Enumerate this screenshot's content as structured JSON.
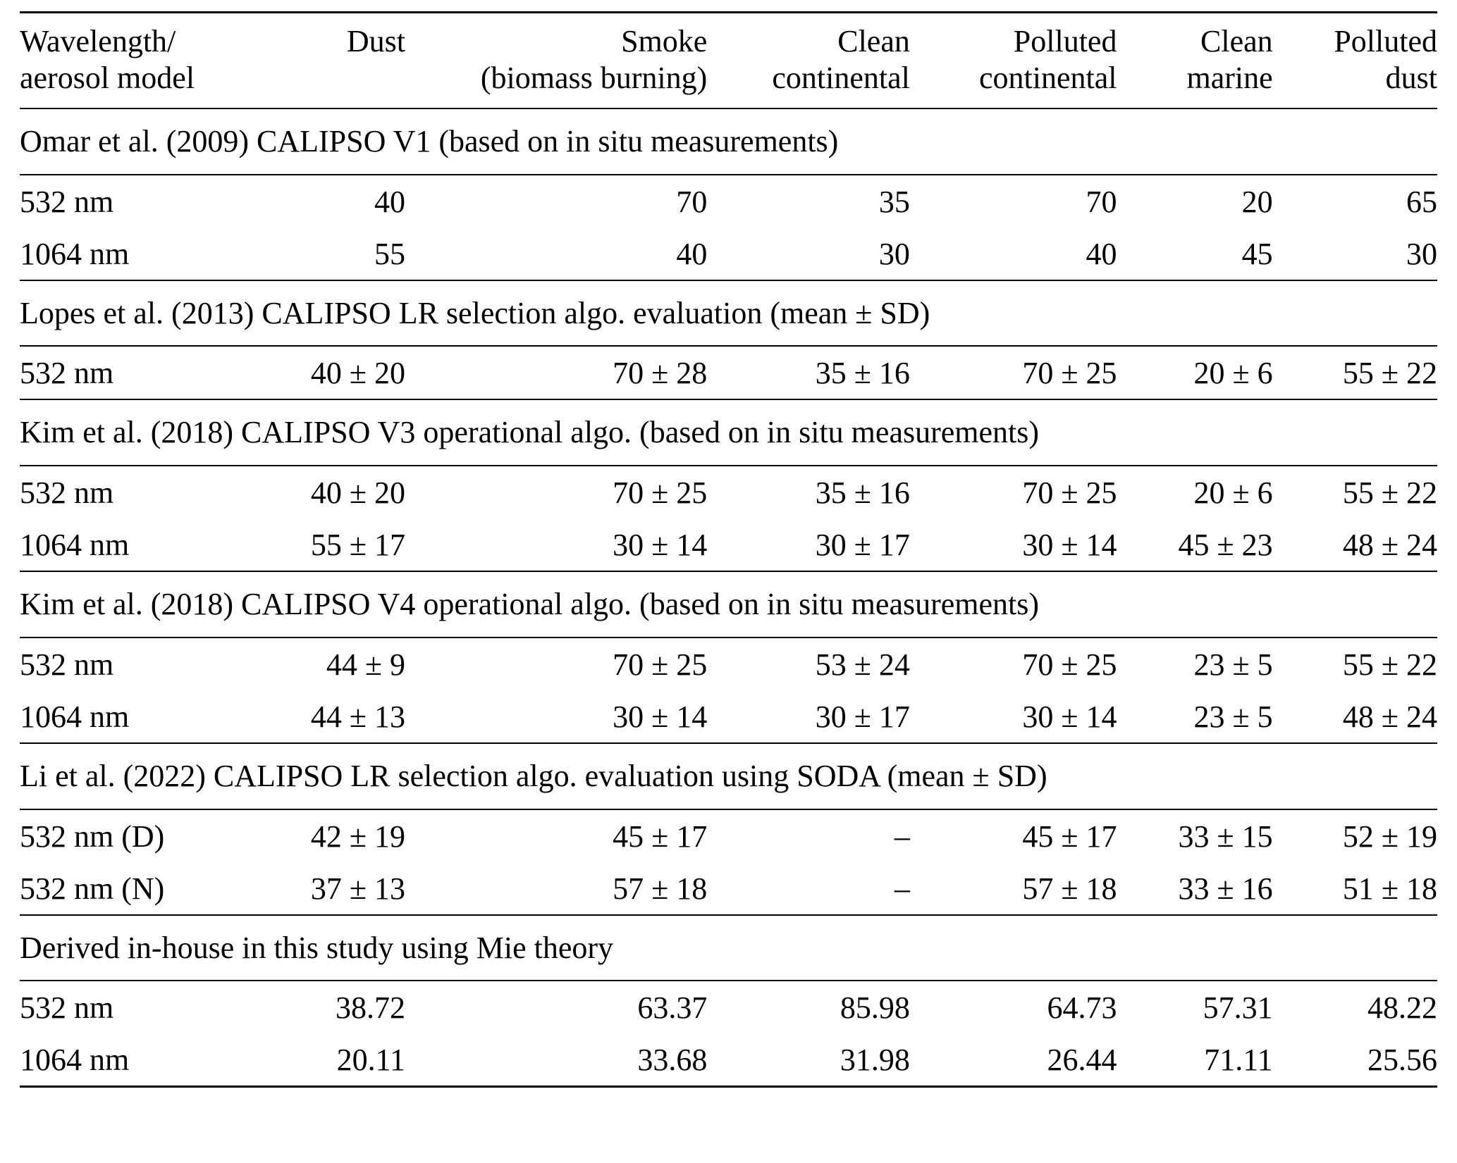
{
  "page": {
    "background": "#ffffff",
    "text_color": "#000000",
    "rule_color": "#000000"
  },
  "table": {
    "header": {
      "col0": "Wavelength/\naerosol model",
      "cols": [
        "Dust",
        "Smoke\n(biomass burning)",
        "Clean\ncontinental",
        "Polluted\ncontinental",
        "Clean\nmarine",
        "Polluted\ndust"
      ]
    },
    "sections": [
      {
        "title": "Omar et al. (2009) CALIPSO V1 (based on in situ measurements)",
        "rows": [
          {
            "label": "532 nm",
            "values": [
              "40",
              "70",
              "35",
              "70",
              "20",
              "65"
            ]
          },
          {
            "label": "1064 nm",
            "values": [
              "55",
              "40",
              "30",
              "40",
              "45",
              "30"
            ]
          }
        ]
      },
      {
        "title": "Lopes et al. (2013) CALIPSO LR selection algo. evaluation (mean ± SD)",
        "rows": [
          {
            "label": "532 nm",
            "values": [
              "40 ± 20",
              "70 ± 28",
              "35 ± 16",
              "70 ± 25",
              "20 ± 6",
              "55 ± 22"
            ]
          }
        ]
      },
      {
        "title": "Kim et al. (2018) CALIPSO V3 operational algo. (based on in situ measurements)",
        "rows": [
          {
            "label": "532 nm",
            "values": [
              "40 ± 20",
              "70 ± 25",
              "35 ± 16",
              "70 ± 25",
              "20 ± 6",
              "55 ± 22"
            ]
          },
          {
            "label": "1064 nm",
            "values": [
              "55 ± 17",
              "30 ± 14",
              "30 ± 17",
              "30 ± 14",
              "45 ± 23",
              "48 ± 24"
            ]
          }
        ]
      },
      {
        "title": "Kim et al. (2018) CALIPSO V4 operational algo. (based on in situ measurements)",
        "rows": [
          {
            "label": "532 nm",
            "values": [
              "44 ± 9",
              "70 ± 25",
              "53 ± 24",
              "70 ± 25",
              "23 ± 5",
              "55 ± 22"
            ]
          },
          {
            "label": "1064 nm",
            "values": [
              "44 ± 13",
              "30 ± 14",
              "30 ± 17",
              "30 ± 14",
              "23 ± 5",
              "48 ± 24"
            ]
          }
        ]
      },
      {
        "title": "Li et al. (2022) CALIPSO LR selection algo. evaluation using SODA (mean ± SD)",
        "rows": [
          {
            "label": "532 nm (D)",
            "values": [
              "42 ± 19",
              "45 ± 17",
              "–",
              "45 ± 17",
              "33 ± 15",
              "52 ± 19"
            ]
          },
          {
            "label": "532 nm (N)",
            "values": [
              "37 ± 13",
              "57 ± 18",
              "–",
              "57 ± 18",
              "33 ± 16",
              "51 ± 18"
            ]
          }
        ]
      },
      {
        "title": "Derived in-house in this study using Mie theory",
        "rows": [
          {
            "label": "532 nm",
            "values": [
              "38.72",
              "63.37",
              "85.98",
              "64.73",
              "57.31",
              "48.22"
            ]
          },
          {
            "label": "1064 nm",
            "values": [
              "20.11",
              "33.68",
              "31.98",
              "26.44",
              "71.11",
              "25.56"
            ]
          }
        ]
      }
    ]
  }
}
